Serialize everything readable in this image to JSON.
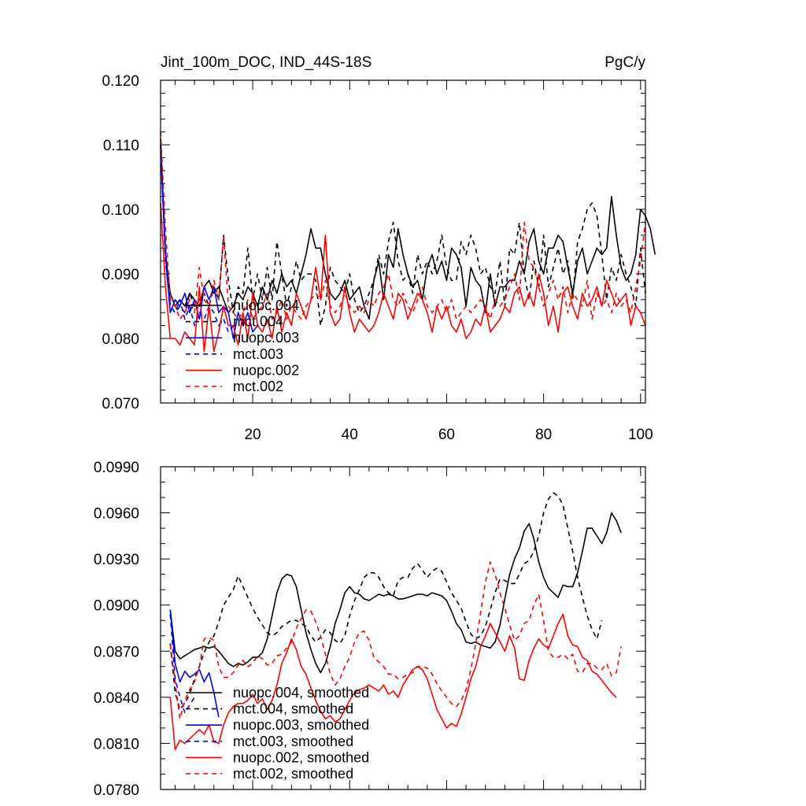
{
  "chart_data": [
    {
      "type": "line",
      "title": "Jint_100m_DOC, IND_44S-18S",
      "units": "PgC/y",
      "xlabel": "",
      "ylabel": "",
      "xlim": [
        1,
        101
      ],
      "ylim": [
        0.07,
        0.12
      ],
      "x_ticks": [
        "20",
        "40",
        "60",
        "80",
        "100"
      ],
      "y_ticks": [
        "0.070",
        "0.080",
        "0.090",
        "0.100",
        "0.110",
        "0.120"
      ],
      "legend_position": "bottom-left",
      "series": [
        {
          "name": "nuopc.004",
          "color": "#000000",
          "dash": "solid",
          "x_start": 1,
          "values": [
            0.111,
            0.093,
            0.087,
            0.085,
            0.086,
            0.085,
            0.087,
            0.086,
            0.085,
            0.088,
            0.089,
            0.087,
            0.088,
            0.086,
            0.084,
            0.085,
            0.087,
            0.086,
            0.088,
            0.087,
            0.085,
            0.088,
            0.086,
            0.089,
            0.087,
            0.09,
            0.088,
            0.089,
            0.087,
            0.09,
            0.093,
            0.097,
            0.094,
            0.094,
            0.09,
            0.087,
            0.086,
            0.087,
            0.089,
            0.086,
            0.087,
            0.088,
            0.085,
            0.083,
            0.089,
            0.092,
            0.086,
            0.093,
            0.091,
            0.097,
            0.093,
            0.09,
            0.088,
            0.089,
            0.086,
            0.091,
            0.093,
            0.09,
            0.092,
            0.089,
            0.094,
            0.093,
            0.091,
            0.085,
            0.091,
            0.089,
            0.088,
            0.084,
            0.09,
            0.085,
            0.088,
            0.088,
            0.089,
            0.089,
            0.092,
            0.09,
            0.095,
            0.097,
            0.092,
            0.09,
            0.094,
            0.094,
            0.096,
            0.095,
            0.091,
            0.087,
            0.092,
            0.094,
            0.09,
            0.092,
            0.094,
            0.093,
            0.094,
            0.102,
            0.096,
            0.091,
            0.089,
            0.09,
            0.093,
            0.1,
            0.099,
            0.097,
            0.093
          ]
        },
        {
          "name": "mct.004",
          "color": "#000000",
          "dash": "dashed",
          "x_start": 1,
          "values": [
            0.11,
            0.094,
            0.085,
            0.084,
            0.085,
            0.084,
            0.087,
            0.085,
            0.086,
            0.087,
            0.085,
            0.088,
            0.086,
            0.096,
            0.089,
            0.084,
            0.088,
            0.087,
            0.094,
            0.086,
            0.09,
            0.086,
            0.091,
            0.086,
            0.095,
            0.09,
            0.085,
            0.088,
            0.092,
            0.089,
            0.09,
            0.09,
            0.089,
            0.082,
            0.085,
            0.091,
            0.089,
            0.088,
            0.087,
            0.09,
            0.086,
            0.084,
            0.085,
            0.087,
            0.089,
            0.093,
            0.09,
            0.095,
            0.098,
            0.092,
            0.089,
            0.09,
            0.087,
            0.093,
            0.09,
            0.092,
            0.09,
            0.092,
            0.096,
            0.091,
            0.089,
            0.089,
            0.095,
            0.093,
            0.096,
            0.094,
            0.09,
            0.091,
            0.088,
            0.087,
            0.092,
            0.085,
            0.094,
            0.093,
            0.098,
            0.09,
            0.086,
            0.092,
            0.088,
            0.096,
            0.088,
            0.091,
            0.094,
            0.09,
            0.092,
            0.086,
            0.095,
            0.097,
            0.1,
            0.101,
            0.099,
            0.093,
            0.086,
            0.091,
            0.089,
            0.093,
            0.09,
            0.088,
            0.085,
            0.094,
            0.087
          ]
        },
        {
          "name": "nuopc.003",
          "color": "#0000ff",
          "dash": "solid",
          "x_start": 1,
          "values": [
            0.109,
            0.093,
            0.084,
            0.086,
            0.085,
            0.087,
            0.084,
            0.086,
            0.083,
            0.088,
            0.086,
            0.088,
            0.084,
            0.085,
            0.084,
            0.08,
            0.084,
            0.082,
            0.084,
            0.081,
            0.082
          ]
        },
        {
          "name": "mct.003",
          "color": "#0000ff",
          "dash": "dashed",
          "x_start": 1,
          "values": [
            0.11,
            0.092,
            0.085,
            0.084,
            0.086,
            0.083,
            0.085,
            0.082,
            0.084,
            0.083,
            0.085,
            0.084,
            0.082,
            0.083,
            0.081,
            0.082
          ]
        },
        {
          "name": "nuopc.002",
          "color": "#ff0000",
          "dash": "solid",
          "x_start": 1,
          "values": [
            0.101,
            0.088,
            0.08,
            0.08,
            0.079,
            0.081,
            0.08,
            0.079,
            0.088,
            0.078,
            0.085,
            0.078,
            0.081,
            0.085,
            0.082,
            0.082,
            0.079,
            0.084,
            0.08,
            0.087,
            0.082,
            0.081,
            0.083,
            0.08,
            0.085,
            0.081,
            0.084,
            0.082,
            0.087,
            0.085,
            0.083,
            0.086,
            0.091,
            0.086,
            0.096,
            0.084,
            0.082,
            0.083,
            0.088,
            0.084,
            0.081,
            0.083,
            0.082,
            0.081,
            0.082,
            0.084,
            0.087,
            0.085,
            0.083,
            0.087,
            0.086,
            0.083,
            0.085,
            0.087,
            0.086,
            0.084,
            0.081,
            0.085,
            0.083,
            0.085,
            0.082,
            0.081,
            0.083,
            0.08,
            0.081,
            0.083,
            0.082,
            0.085,
            0.081,
            0.082,
            0.083,
            0.085,
            0.084,
            0.087,
            0.088,
            0.085,
            0.087,
            0.085,
            0.09,
            0.087,
            0.082,
            0.085,
            0.081,
            0.087,
            0.088,
            0.085,
            0.083,
            0.087,
            0.085,
            0.086,
            0.088,
            0.085,
            0.089,
            0.087,
            0.085,
            0.086,
            0.087,
            0.082,
            0.085,
            0.084,
            0.082
          ]
        },
        {
          "name": "mct.002",
          "color": "#ff0000",
          "dash": "dashed",
          "x_start": 1,
          "values": [
            0.112,
            0.097,
            0.086,
            0.085,
            0.083,
            0.084,
            0.086,
            0.084,
            0.091,
            0.086,
            0.085,
            0.089,
            0.086,
            0.096,
            0.085,
            0.084,
            0.083,
            0.084,
            0.086,
            0.083,
            0.084,
            0.085,
            0.087,
            0.083,
            0.084,
            0.086,
            0.083,
            0.085,
            0.084,
            0.083,
            0.085,
            0.086,
            0.087,
            0.086,
            0.089,
            0.085,
            0.084,
            0.085,
            0.087,
            0.085,
            0.084,
            0.085,
            0.084,
            0.086,
            0.085,
            0.087,
            0.088,
            0.09,
            0.086,
            0.085,
            0.087,
            0.085,
            0.084,
            0.086,
            0.088,
            0.085,
            0.084,
            0.085,
            0.086,
            0.084,
            0.086,
            0.083,
            0.084,
            0.085,
            0.084,
            0.085,
            0.086,
            0.085,
            0.083,
            0.086,
            0.085,
            0.086,
            0.088,
            0.09,
            0.086,
            0.098,
            0.092,
            0.091,
            0.088,
            0.085,
            0.087,
            0.089,
            0.086,
            0.088,
            0.084,
            0.087,
            0.086,
            0.085,
            0.089,
            0.083,
            0.087,
            0.085,
            0.086,
            0.084,
            0.087,
            0.085,
            0.086,
            0.084,
            0.088,
            0.092,
            0.098
          ]
        }
      ]
    },
    {
      "type": "line",
      "title": "",
      "xlabel": "",
      "ylabel": "",
      "xlim": [
        1,
        101
      ],
      "ylim": [
        0.078,
        0.099
      ],
      "x_ticks": [],
      "y_ticks": [
        "0.0780",
        "0.0810",
        "0.0840",
        "0.0870",
        "0.0900",
        "0.0930",
        "0.0960",
        "0.0990"
      ],
      "legend_position": "bottom-left",
      "series": [
        {
          "name": "nuopc.004, smoothed",
          "color": "#000000",
          "dash": "solid",
          "x_start": 3,
          "values": [
            0.0897,
            0.087,
            0.0865,
            0.0867,
            0.0869,
            0.0871,
            0.0872,
            0.0873,
            0.0872,
            0.0873,
            0.087,
            0.0866,
            0.0862,
            0.086,
            0.0862,
            0.0861,
            0.0863,
            0.0866,
            0.0866,
            0.0869,
            0.0878,
            0.0893,
            0.0908,
            0.0917,
            0.092,
            0.0919,
            0.0912,
            0.0897,
            0.0882,
            0.0871,
            0.0862,
            0.0856,
            0.0862,
            0.0873,
            0.0888,
            0.0897,
            0.0908,
            0.0912,
            0.0908,
            0.0907,
            0.0904,
            0.0903,
            0.0905,
            0.0907,
            0.0906,
            0.0907,
            0.0906,
            0.0904,
            0.0904,
            0.0905,
            0.0906,
            0.0907,
            0.0907,
            0.0906,
            0.0908,
            0.0907,
            0.0906,
            0.0903,
            0.0896,
            0.0888,
            0.0884,
            0.0876,
            0.0875,
            0.0876,
            0.0874,
            0.0873,
            0.0872,
            0.0876,
            0.0887,
            0.0904,
            0.092,
            0.093,
            0.0937,
            0.0948,
            0.0953,
            0.0943,
            0.0928,
            0.0918,
            0.0911,
            0.0908,
            0.0905,
            0.0913,
            0.0912,
            0.0912,
            0.0921,
            0.0935,
            0.095,
            0.095,
            0.0945,
            0.094,
            0.0947,
            0.096,
            0.0955,
            0.0947
          ]
        },
        {
          "name": "mct.004, smoothed",
          "color": "#000000",
          "dash": "dashed",
          "x_start": 3,
          "values": [
            0.0875,
            0.0843,
            0.0832,
            0.0836,
            0.0842,
            0.0852,
            0.086,
            0.0869,
            0.0876,
            0.088,
            0.0889,
            0.09,
            0.0905,
            0.091,
            0.0919,
            0.0912,
            0.0905,
            0.0898,
            0.0892,
            0.0887,
            0.0882,
            0.088,
            0.0882,
            0.0886,
            0.0888,
            0.089,
            0.089,
            0.0888,
            0.0886,
            0.088,
            0.0876,
            0.0879,
            0.0884,
            0.0882,
            0.0877,
            0.0875,
            0.088,
            0.0893,
            0.0903,
            0.091,
            0.0918,
            0.0921,
            0.0921,
            0.0918,
            0.0912,
            0.0908,
            0.0906,
            0.0916,
            0.0918,
            0.0918,
            0.0924,
            0.0927,
            0.0923,
            0.0918,
            0.0922,
            0.0924,
            0.0922,
            0.0915,
            0.0908,
            0.0903,
            0.0898,
            0.0889,
            0.0881,
            0.0878,
            0.088,
            0.0886,
            0.0897,
            0.0908,
            0.0917,
            0.0916,
            0.0914,
            0.0914,
            0.092,
            0.0927,
            0.0929,
            0.0935,
            0.0945,
            0.096,
            0.0969,
            0.0973,
            0.0971,
            0.0965,
            0.095,
            0.0935,
            0.0918,
            0.0905,
            0.0893,
            0.0884,
            0.0878,
            0.089
          ]
        },
        {
          "name": "nuopc.003, smoothed",
          "color": "#0000ff",
          "dash": "solid",
          "x_start": 3,
          "values": [
            0.0897,
            0.0862,
            0.085,
            0.0857,
            0.0853,
            0.0855,
            0.0858,
            0.085,
            0.0856,
            0.0843,
            0.0827
          ]
        },
        {
          "name": "mct.003, smoothed",
          "color": "#0000ff",
          "dash": "dashed",
          "x_start": 3,
          "values": [
            0.0894,
            0.0852,
            0.084,
            0.083,
            0.0835,
            0.084
          ]
        },
        {
          "name": "nuopc.002, smoothed",
          "color": "#ff0000",
          "dash": "solid",
          "x_start": 3,
          "values": [
            0.084,
            0.0806,
            0.0812,
            0.081,
            0.0813,
            0.0816,
            0.0819,
            0.0816,
            0.0822,
            0.0811,
            0.081,
            0.0822,
            0.083,
            0.0834,
            0.0836,
            0.0836,
            0.0838,
            0.0842,
            0.0836,
            0.0839,
            0.0832,
            0.0838,
            0.0848,
            0.0862,
            0.0869,
            0.0878,
            0.0871,
            0.086,
            0.0855,
            0.0846,
            0.0838,
            0.0831,
            0.0826,
            0.0828,
            0.0824,
            0.0826,
            0.0832,
            0.0838,
            0.0843,
            0.0845,
            0.0846,
            0.0848,
            0.0846,
            0.0844,
            0.0848,
            0.0842,
            0.0844,
            0.084,
            0.0848,
            0.0853,
            0.0858,
            0.086,
            0.0858,
            0.0852,
            0.0842,
            0.0832,
            0.0826,
            0.082,
            0.0823,
            0.0821,
            0.0829,
            0.084,
            0.0852,
            0.086,
            0.0873,
            0.088,
            0.0888,
            0.0882,
            0.0876,
            0.087,
            0.088,
            0.0872,
            0.0852,
            0.0851,
            0.0864,
            0.0872,
            0.0878,
            0.0874,
            0.0872,
            0.088,
            0.0888,
            0.0894,
            0.088,
            0.0874,
            0.0873,
            0.0866,
            0.0864,
            0.0857,
            0.0855,
            0.0851,
            0.0847,
            0.0843,
            0.084
          ]
        },
        {
          "name": "mct.002, smoothed",
          "color": "#ff0000",
          "dash": "dashed",
          "x_start": 3,
          "values": [
            0.0874,
            0.085,
            0.0826,
            0.0838,
            0.0845,
            0.085,
            0.086,
            0.0878,
            0.0879,
            0.0877,
            0.086,
            0.0853,
            0.0853,
            0.0856,
            0.0861,
            0.0864,
            0.086,
            0.0862,
            0.0867,
            0.0865,
            0.0861,
            0.0862,
            0.0867,
            0.0868,
            0.0872,
            0.0876,
            0.0885,
            0.0891,
            0.0897,
            0.0896,
            0.0889,
            0.088,
            0.0868,
            0.0855,
            0.0848,
            0.0852,
            0.086,
            0.0866,
            0.0876,
            0.0882,
            0.0883,
            0.0877,
            0.0866,
            0.0863,
            0.086,
            0.0855,
            0.0855,
            0.0852,
            0.0853,
            0.0855,
            0.0856,
            0.086,
            0.086,
            0.0859,
            0.0855,
            0.0849,
            0.0844,
            0.084,
            0.0836,
            0.0834,
            0.0838,
            0.0845,
            0.0858,
            0.0875,
            0.0895,
            0.0915,
            0.0928,
            0.092,
            0.0908,
            0.0898,
            0.0887,
            0.0877,
            0.088,
            0.0888,
            0.089,
            0.09,
            0.0907,
            0.089,
            0.087,
            0.0866,
            0.0866,
            0.0868,
            0.0865,
            0.0868,
            0.0857,
            0.0856,
            0.0862,
            0.0862,
            0.0859,
            0.0858,
            0.0862,
            0.0854,
            0.0856,
            0.0873
          ]
        }
      ]
    }
  ]
}
